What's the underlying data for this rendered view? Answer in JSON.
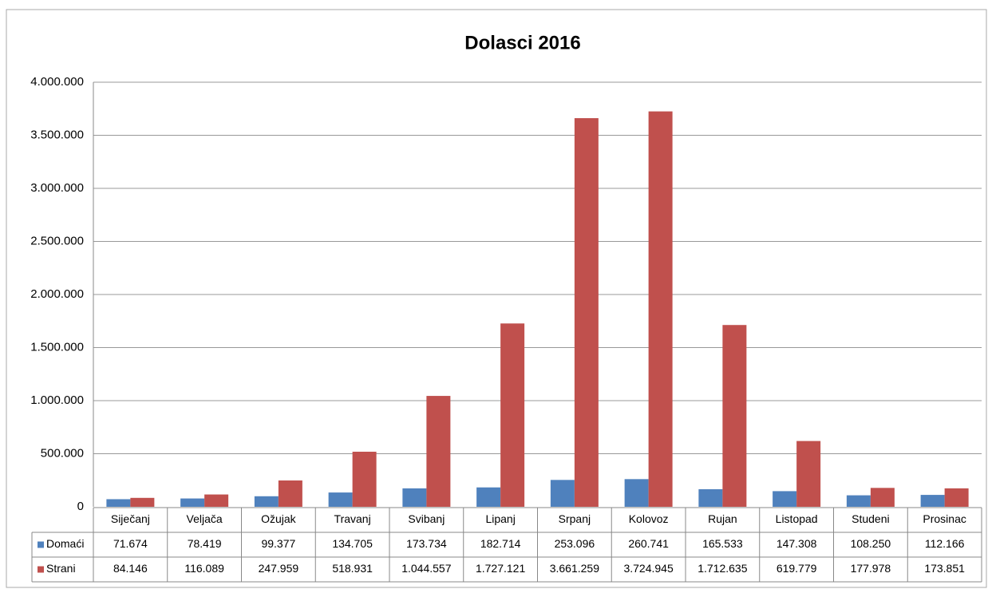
{
  "chart_data": {
    "type": "bar",
    "title": "Dolasci 2016",
    "categories": [
      "Siječanj",
      "Veljača",
      "Ožujak",
      "Travanj",
      "Svibanj",
      "Lipanj",
      "Srpanj",
      "Kolovoz",
      "Rujan",
      "Listopad",
      "Studeni",
      "Prosinac"
    ],
    "series": [
      {
        "name": "Domaći",
        "color": "#4f81bd",
        "values": [
          71674,
          78419,
          99377,
          134705,
          173734,
          182714,
          253096,
          260741,
          165533,
          147308,
          108250,
          112166
        ],
        "value_labels": [
          "71.674",
          "78.419",
          "99.377",
          "134.705",
          "173.734",
          "182.714",
          "253.096",
          "260.741",
          "165.533",
          "147.308",
          "108.250",
          "112.166"
        ]
      },
      {
        "name": "Strani",
        "color": "#c0504d",
        "values": [
          84146,
          116089,
          247959,
          518931,
          1044557,
          1727121,
          3661259,
          3724945,
          1712635,
          619779,
          177978,
          173851
        ],
        "value_labels": [
          "84.146",
          "116.089",
          "247.959",
          "518.931",
          "1.044.557",
          "1.727.121",
          "3.661.259",
          "3.724.945",
          "1.712.635",
          "619.779",
          "177.978",
          "173.851"
        ]
      }
    ],
    "ylim": [
      0,
      4000000
    ],
    "yticks": [
      0,
      {
        "value": 500000,
        "label": "500.000"
      },
      {
        "value": 1000000,
        "label": "1.000.000"
      },
      {
        "value": 1500000,
        "label": "1.500.000"
      },
      {
        "value": 2000000,
        "label": "2.000.000"
      },
      {
        "value": 2500000,
        "label": "2.500.000"
      },
      {
        "value": 3000000,
        "label": "3.000.000"
      },
      {
        "value": 3500000,
        "label": "3.500.000"
      },
      {
        "value": 4000000,
        "label": "4.000.000"
      }
    ],
    "grid": true
  }
}
